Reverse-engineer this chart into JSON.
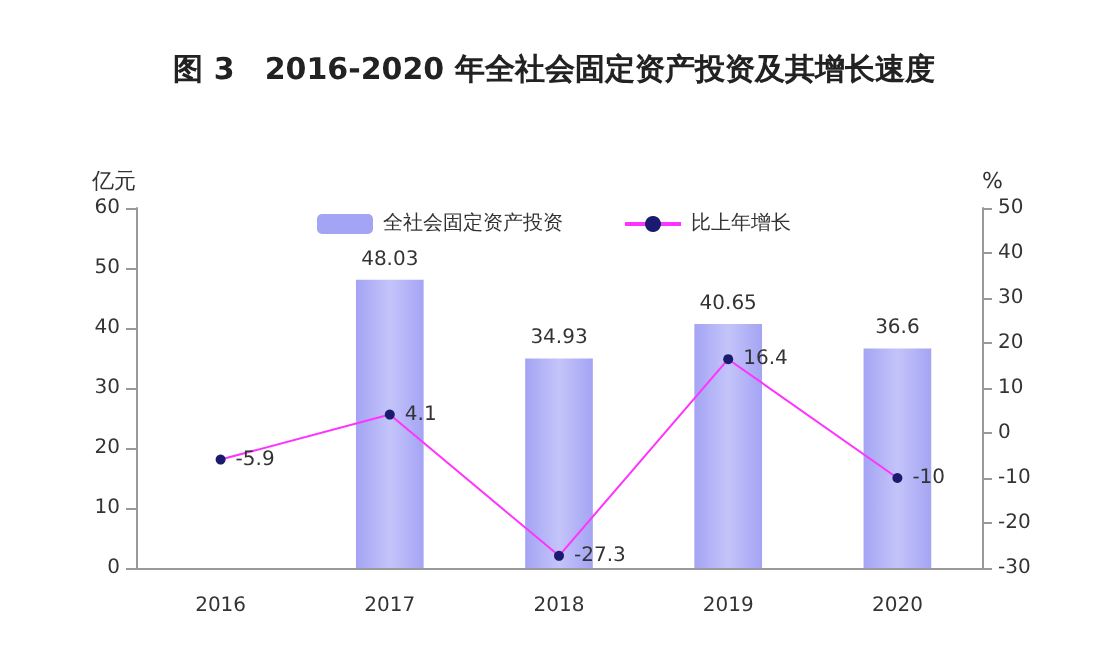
{
  "chart_data": {
    "type": "bar",
    "title": "图 3　2016-2020 年全社会固定资产投资及其增长速度",
    "ylabel": "亿元",
    "y2label": "%",
    "categories": [
      "2016",
      "2017",
      "2018",
      "2019",
      "2020"
    ],
    "series": [
      {
        "name": "全社会固定资产投资",
        "color": "#a4a4f4",
        "values": [
          null,
          48.03,
          34.93,
          40.65,
          36.6
        ]
      },
      {
        "name": "比上年增长",
        "type": "line",
        "axis": "y2",
        "color": "#ff33ff",
        "values": [
          -5.9,
          4.1,
          -27.3,
          16.4,
          -10
        ]
      }
    ],
    "ylim": [
      0,
      60
    ],
    "yticks": [
      0,
      10,
      20,
      30,
      40,
      50,
      60
    ],
    "y2lim": [
      -30,
      50
    ],
    "y2ticks": [
      -30,
      -20,
      -10,
      0,
      10,
      20,
      30,
      40,
      50
    ],
    "data_labels": true,
    "legend": "top",
    "grid": false,
    "marker": "circle"
  }
}
